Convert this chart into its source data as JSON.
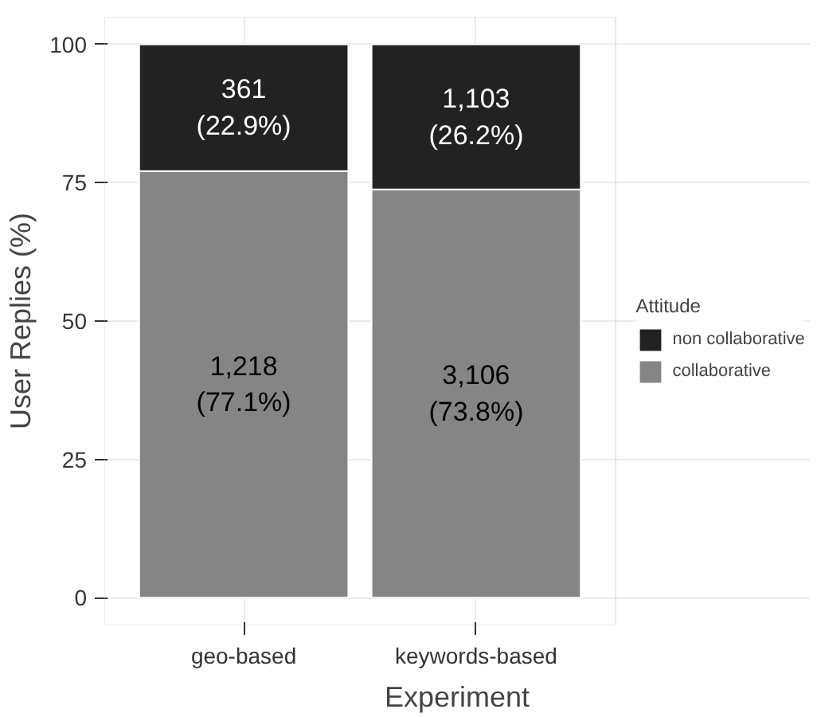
{
  "chart_data": {
    "type": "bar",
    "stacked": true,
    "xlabel": "Experiment",
    "ylabel": "User Replies (%)",
    "legend_title": "Attitude",
    "legend": "right",
    "grid": true,
    "categories": [
      "geo-based",
      "keywords-based"
    ],
    "ylim": [
      -5,
      105
    ],
    "yticks": [
      0,
      25,
      50,
      75,
      100
    ],
    "series": [
      {
        "name": "collaborative",
        "color": "#858585",
        "values": [
          77.1,
          73.8
        ],
        "value_labels": [
          "1,218\n(77.1%)",
          "3,106\n(73.8%)"
        ]
      },
      {
        "name": "non collaborative",
        "color": "#222222",
        "values": [
          22.9,
          26.2
        ],
        "value_labels": [
          "361\n(22.9%)",
          "1,103\n(26.2%)"
        ]
      }
    ]
  }
}
